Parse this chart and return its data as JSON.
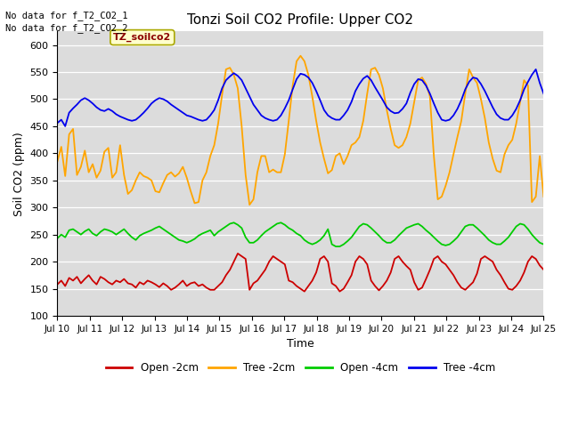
{
  "title": "Tonzi Soil CO2 Profile: Upper CO2",
  "xlabel": "Time",
  "ylabel": "Soil CO2 (ppm)",
  "ylim": [
    100,
    625
  ],
  "yticks": [
    100,
    150,
    200,
    250,
    300,
    350,
    400,
    450,
    500,
    550,
    600
  ],
  "bg_color": "#dcdcdc",
  "fig_color": "#ffffff",
  "text_top_left": [
    "No data for f_T2_CO2_1",
    "No data for f_T2_CO2_2"
  ],
  "annotation_box": "TZ_soilco2",
  "legend_labels": [
    "Open -2cm",
    "Tree -2cm",
    "Open -4cm",
    "Tree -4cm"
  ],
  "legend_colors": [
    "#cc0000",
    "#ffa500",
    "#00cc00",
    "#0000ee"
  ],
  "series_colors": [
    "#cc0000",
    "#ffa500",
    "#00cc00",
    "#0000ee"
  ],
  "xtick_labels": [
    "Jul 10",
    "Jul 11",
    "Jul 12",
    "Jul 13",
    "Jul 14",
    "Jul 15",
    "Jul 16",
    "Jul 17",
    "Jul 18",
    "Jul 19",
    "Jul 20",
    "Jul 21",
    "Jul 22",
    "Jul 23",
    "Jul 24",
    "Jul 25"
  ],
  "open_2cm": [
    158,
    165,
    155,
    170,
    165,
    172,
    160,
    168,
    175,
    165,
    158,
    172,
    168,
    162,
    158,
    165,
    162,
    168,
    160,
    158,
    152,
    162,
    158,
    165,
    162,
    158,
    153,
    160,
    155,
    148,
    152,
    158,
    165,
    155,
    160,
    162,
    155,
    158,
    152,
    148,
    148,
    155,
    162,
    175,
    185,
    200,
    215,
    210,
    205,
    148,
    160,
    165,
    175,
    185,
    200,
    210,
    205,
    200,
    195,
    165,
    162,
    155,
    150,
    145,
    155,
    165,
    180,
    205,
    210,
    200,
    160,
    155,
    145,
    150,
    162,
    175,
    200,
    210,
    205,
    195,
    165,
    155,
    147,
    155,
    165,
    180,
    205,
    210,
    200,
    192,
    185,
    162,
    148,
    152,
    168,
    185,
    205,
    210,
    200,
    195,
    185,
    175,
    162,
    152,
    148,
    155,
    162,
    178,
    205,
    210,
    205,
    200,
    185,
    175,
    162,
    150,
    148,
    155,
    165,
    180,
    200,
    210,
    205,
    193,
    185
  ],
  "tree_2cm": [
    385,
    412,
    358,
    435,
    445,
    360,
    375,
    405,
    365,
    380,
    355,
    368,
    403,
    410,
    355,
    365,
    415,
    360,
    325,
    332,
    350,
    365,
    358,
    355,
    350,
    330,
    328,
    345,
    360,
    365,
    357,
    363,
    375,
    355,
    330,
    308,
    310,
    350,
    365,
    395,
    415,
    455,
    508,
    555,
    558,
    545,
    520,
    450,
    360,
    305,
    315,
    365,
    395,
    395,
    365,
    370,
    365,
    365,
    398,
    460,
    525,
    570,
    580,
    570,
    545,
    505,
    460,
    420,
    390,
    363,
    369,
    395,
    400,
    380,
    395,
    415,
    420,
    430,
    460,
    510,
    555,
    558,
    545,
    520,
    480,
    445,
    415,
    410,
    415,
    430,
    455,
    495,
    535,
    540,
    528,
    505,
    395,
    315,
    320,
    340,
    365,
    398,
    430,
    460,
    510,
    555,
    540,
    530,
    500,
    465,
    420,
    390,
    368,
    365,
    398,
    415,
    425,
    455,
    495,
    535,
    525,
    310,
    320,
    395,
    320
  ],
  "open_4cm": [
    243,
    250,
    245,
    258,
    260,
    255,
    250,
    256,
    260,
    252,
    248,
    255,
    260,
    258,
    255,
    250,
    255,
    260,
    252,
    245,
    240,
    248,
    252,
    255,
    258,
    262,
    265,
    260,
    255,
    250,
    245,
    240,
    238,
    235,
    238,
    242,
    248,
    252,
    255,
    258,
    248,
    255,
    260,
    265,
    270,
    272,
    268,
    262,
    245,
    235,
    235,
    240,
    248,
    255,
    260,
    265,
    270,
    272,
    268,
    262,
    258,
    252,
    248,
    240,
    235,
    232,
    235,
    240,
    248,
    260,
    232,
    228,
    228,
    232,
    238,
    245,
    255,
    265,
    270,
    268,
    262,
    255,
    248,
    240,
    235,
    235,
    240,
    248,
    255,
    262,
    265,
    268,
    270,
    265,
    258,
    252,
    245,
    238,
    232,
    230,
    232,
    238,
    245,
    255,
    265,
    268,
    268,
    262,
    255,
    248,
    240,
    235,
    232,
    232,
    238,
    245,
    255,
    265,
    270,
    268,
    260,
    250,
    242,
    235,
    232
  ],
  "tree_4cm": [
    456,
    462,
    450,
    475,
    483,
    490,
    498,
    502,
    498,
    492,
    485,
    480,
    478,
    482,
    478,
    472,
    468,
    465,
    462,
    460,
    462,
    468,
    475,
    483,
    492,
    498,
    502,
    500,
    496,
    490,
    485,
    480,
    475,
    470,
    468,
    465,
    462,
    460,
    462,
    470,
    480,
    498,
    520,
    535,
    542,
    548,
    543,
    535,
    520,
    505,
    490,
    480,
    470,
    465,
    462,
    460,
    462,
    470,
    483,
    498,
    518,
    537,
    547,
    545,
    540,
    530,
    515,
    498,
    480,
    470,
    465,
    462,
    462,
    470,
    480,
    495,
    515,
    528,
    538,
    543,
    535,
    522,
    510,
    498,
    485,
    478,
    474,
    475,
    482,
    492,
    512,
    528,
    537,
    535,
    525,
    510,
    492,
    475,
    462,
    460,
    462,
    470,
    482,
    498,
    518,
    532,
    540,
    538,
    528,
    515,
    500,
    485,
    472,
    465,
    462,
    462,
    470,
    482,
    498,
    518,
    532,
    545,
    555,
    530,
    510
  ]
}
